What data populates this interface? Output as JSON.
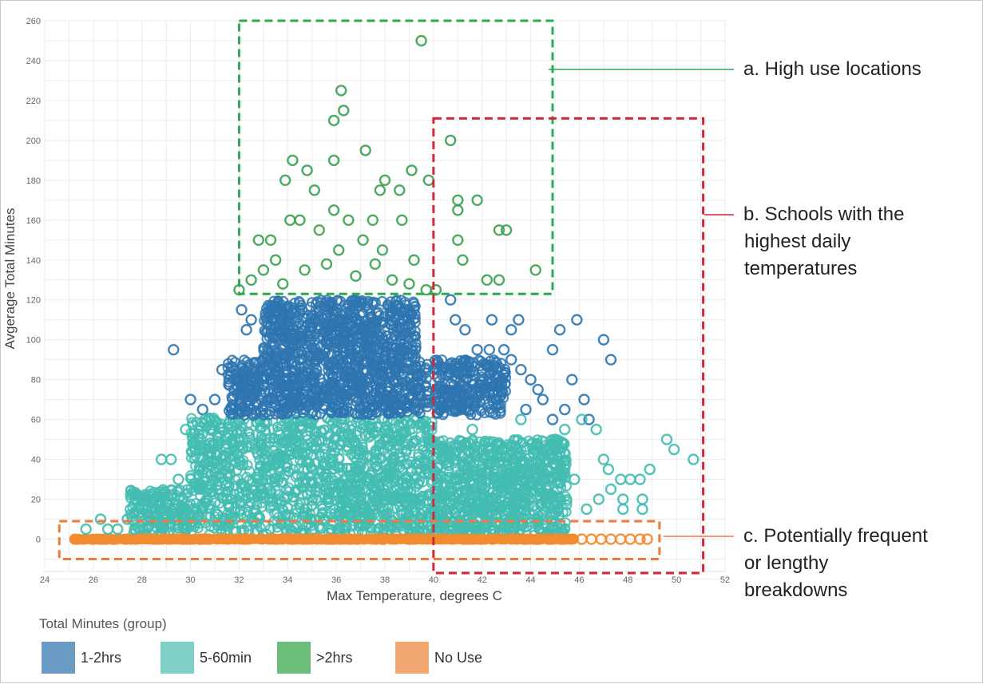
{
  "chart_data": {
    "type": "scatter",
    "title": "",
    "xlabel": "Max Temperature, degrees C",
    "ylabel": "Avgerage Total Minutes",
    "xlim": [
      24,
      52
    ],
    "ylim": [
      -20,
      260
    ],
    "xticks": [
      24,
      26,
      28,
      30,
      32,
      34,
      36,
      38,
      40,
      42,
      44,
      46,
      48,
      50,
      52
    ],
    "yticks": [
      0,
      20,
      40,
      60,
      80,
      100,
      120,
      140,
      160,
      180,
      200,
      220,
      240,
      260
    ],
    "grid": true,
    "legend": {
      "title": "Total Minutes (group)",
      "position": "bottom-left",
      "items": [
        {
          "label": "1-2hrs",
          "color": "#6a9bc5"
        },
        {
          "label": "5-60min",
          "color": "#7fd0c6"
        },
        {
          "label": ">2hrs",
          "color": "#6cbd7a"
        },
        {
          "label": "No Use",
          "color": "#f2a971"
        }
      ]
    },
    "series": [
      {
        "name": ">2hrs",
        "color": "#3aa150",
        "points": [
          [
            39.5,
            250
          ],
          [
            36.2,
            225
          ],
          [
            36.3,
            215
          ],
          [
            35.9,
            210
          ],
          [
            40.7,
            200
          ],
          [
            37.2,
            195
          ],
          [
            34.2,
            190
          ],
          [
            35.9,
            190
          ],
          [
            34.8,
            185
          ],
          [
            39.1,
            185
          ],
          [
            33.9,
            180
          ],
          [
            38.0,
            180
          ],
          [
            39.8,
            180
          ],
          [
            35.1,
            175
          ],
          [
            37.8,
            175
          ],
          [
            38.6,
            175
          ],
          [
            41.0,
            170
          ],
          [
            41.8,
            170
          ],
          [
            41.0,
            165
          ],
          [
            42.7,
            155
          ],
          [
            41.0,
            150
          ],
          [
            41.2,
            140
          ],
          [
            43.0,
            155
          ],
          [
            42.2,
            130
          ],
          [
            42.7,
            130
          ],
          [
            44.2,
            135
          ],
          [
            32.8,
            150
          ],
          [
            33.3,
            150
          ],
          [
            33.5,
            140
          ],
          [
            34.5,
            160
          ],
          [
            35.3,
            155
          ],
          [
            36.5,
            160
          ],
          [
            37.5,
            160
          ],
          [
            38.7,
            160
          ],
          [
            39.2,
            140
          ],
          [
            36.1,
            145
          ],
          [
            37.1,
            150
          ],
          [
            32.5,
            130
          ],
          [
            33.0,
            135
          ],
          [
            33.8,
            128
          ],
          [
            34.7,
            135
          ],
          [
            35.6,
            138
          ],
          [
            36.8,
            132
          ],
          [
            37.6,
            138
          ],
          [
            38.3,
            130
          ],
          [
            39.0,
            128
          ],
          [
            39.7,
            125
          ],
          [
            40.1,
            125
          ],
          [
            32.0,
            125
          ],
          [
            34.1,
            160
          ],
          [
            35.9,
            165
          ],
          [
            37.9,
            145
          ]
        ]
      },
      {
        "name": "1-2hrs",
        "color": "#2e76b0",
        "points": [
          [
            29.3,
            95
          ],
          [
            30.0,
            70
          ],
          [
            31.0,
            70
          ],
          [
            31.3,
            85
          ],
          [
            40.7,
            120
          ],
          [
            40.9,
            110
          ],
          [
            41.3,
            105
          ],
          [
            41.8,
            95
          ],
          [
            42.3,
            95
          ],
          [
            42.9,
            95
          ],
          [
            43.2,
            90
          ],
          [
            43.6,
            85
          ],
          [
            44.0,
            80
          ],
          [
            44.3,
            75
          ],
          [
            44.9,
            95
          ],
          [
            42.4,
            110
          ],
          [
            43.2,
            105
          ],
          [
            43.5,
            110
          ],
          [
            44.5,
            70
          ],
          [
            45.2,
            105
          ],
          [
            45.7,
            80
          ],
          [
            45.9,
            110
          ],
          [
            46.2,
            70
          ],
          [
            45.4,
            65
          ],
          [
            46.4,
            60
          ],
          [
            47.0,
            100
          ],
          [
            47.3,
            90
          ],
          [
            41.5,
            65
          ],
          [
            42.6,
            70
          ],
          [
            43.8,
            65
          ],
          [
            44.9,
            60
          ],
          [
            30.5,
            65
          ],
          [
            31.8,
            75
          ],
          [
            32.5,
            110
          ],
          [
            33.3,
            115
          ],
          [
            32.1,
            115
          ],
          [
            31.7,
            65
          ],
          [
            32.3,
            105
          ]
        ]
      },
      {
        "name": "5-60min",
        "color": "#43bcb1",
        "points": [
          [
            49.6,
            50
          ],
          [
            49.9,
            45
          ],
          [
            50.7,
            40
          ],
          [
            48.9,
            35
          ],
          [
            48.1,
            30
          ],
          [
            47.7,
            30
          ],
          [
            48.5,
            30
          ],
          [
            47.3,
            25
          ],
          [
            47.0,
            40
          ],
          [
            46.7,
            55
          ],
          [
            46.1,
            60
          ],
          [
            45.4,
            55
          ],
          [
            45.0,
            50
          ],
          [
            44.7,
            45
          ],
          [
            44.4,
            40
          ],
          [
            47.8,
            20
          ],
          [
            47.8,
            15
          ],
          [
            48.6,
            20
          ],
          [
            48.6,
            15
          ],
          [
            47.2,
            35
          ],
          [
            46.8,
            20
          ],
          [
            46.3,
            15
          ],
          [
            45.8,
            30
          ],
          [
            45.2,
            35
          ],
          [
            26.3,
            10
          ],
          [
            26.6,
            5
          ],
          [
            27.0,
            5
          ],
          [
            27.4,
            10
          ],
          [
            27.7,
            5
          ],
          [
            28.1,
            15
          ],
          [
            28.5,
            20
          ],
          [
            28.8,
            40
          ],
          [
            29.2,
            40
          ],
          [
            29.5,
            30
          ],
          [
            29.8,
            55
          ],
          [
            30.2,
            45
          ],
          [
            30.6,
            60
          ],
          [
            41.6,
            55
          ],
          [
            42.8,
            45
          ],
          [
            43.6,
            60
          ],
          [
            25.7,
            5
          ]
        ]
      },
      {
        "name": "No Use",
        "color": "#f28a30",
        "points": [
          [
            46.1,
            0
          ],
          [
            46.5,
            0
          ],
          [
            46.9,
            0
          ],
          [
            47.3,
            0
          ],
          [
            47.7,
            0
          ],
          [
            48.1,
            0
          ],
          [
            48.5,
            0
          ],
          [
            48.8,
            0
          ]
        ]
      }
    ],
    "dense_regions": [
      {
        "series": "5-60min",
        "color": "#43bcb1",
        "x_from": 30.0,
        "x_to": 40.0,
        "y_from": 2,
        "y_to": 61
      },
      {
        "series": "5-60min",
        "color": "#43bcb1",
        "x_from": 40.0,
        "x_to": 45.5,
        "y_from": 2,
        "y_to": 50
      },
      {
        "series": "5-60min",
        "color": "#43bcb1",
        "x_from": 27.5,
        "x_to": 30.0,
        "y_from": 2,
        "y_to": 25
      },
      {
        "series": "1-2hrs",
        "color": "#2e76b0",
        "x_from": 31.5,
        "x_to": 39.8,
        "y_from": 62,
        "y_to": 90
      },
      {
        "series": "1-2hrs",
        "color": "#2e76b0",
        "x_from": 33.0,
        "x_to": 39.3,
        "y_from": 90,
        "y_to": 120
      },
      {
        "series": "1-2hrs",
        "color": "#2e76b0",
        "x_from": 40.0,
        "x_to": 43.0,
        "y_from": 62,
        "y_to": 90
      },
      {
        "series": "No Use",
        "color": "#f28a30",
        "x_from": 25.2,
        "x_to": 45.8,
        "y_from": -1.5,
        "y_to": 1.5
      }
    ],
    "regions": [
      {
        "id": "a",
        "color": "#2bab4e",
        "x_from": 32.0,
        "x_to": 44.9,
        "y_from": 123,
        "y_to": 260,
        "annotation": "a. High use locations"
      },
      {
        "id": "b",
        "color": "#d0273b",
        "x_from": 40.0,
        "x_to": 51.1,
        "y_from": -17,
        "y_to": 211,
        "annotation": "b. Schools with the highest daily temperatures"
      },
      {
        "id": "c",
        "color": "#f07a3a",
        "x_from": 24.6,
        "x_to": 49.3,
        "y_from": -10,
        "y_to": 9,
        "annotation": "c. Potentially frequent or lengthy breakdowns"
      }
    ]
  },
  "annotations": {
    "a": [
      "a. High use locations"
    ],
    "b": [
      "b. Schools with the",
      "highest daily",
      "temperatures"
    ],
    "c": [
      "c. Potentially frequent",
      "or lengthy",
      "breakdowns"
    ]
  }
}
